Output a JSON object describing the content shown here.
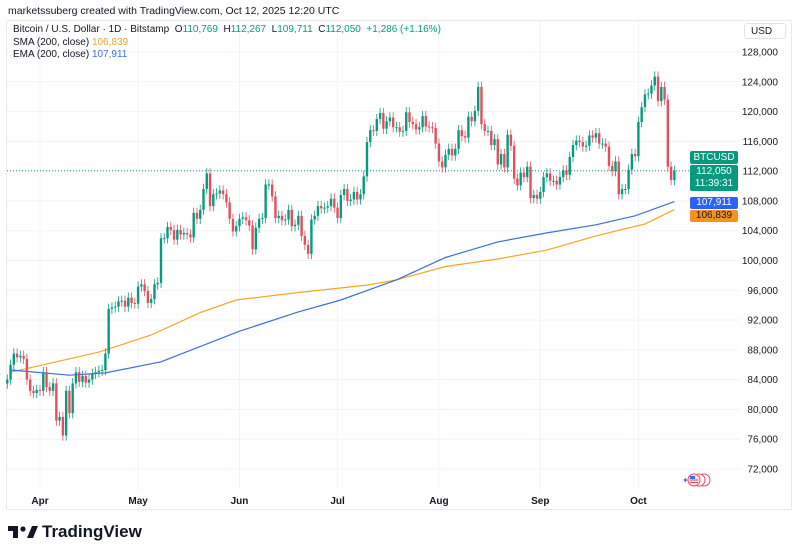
{
  "credit": "marketssuberg created with TradingView.com, Oct 12, 2025 12:20 UTC",
  "legend": {
    "symbol": "Bitcoin / U.S. Dollar · 1D · Bitstamp",
    "o_label": "O",
    "o": "110,769",
    "h_label": "H",
    "h": "112,267",
    "l_label": "L",
    "l": "109,711",
    "c_label": "C",
    "c": "112,050",
    "change": "+1,286 (+1.16%)",
    "sma_label": "SMA (200, close)",
    "sma_value": "106,839",
    "ema_label": "EMA (200, close)",
    "ema_value": "107,911"
  },
  "currency": "USD",
  "tags": {
    "symbol": "BTCUSD",
    "price": "112,050",
    "countdown": "11:39:31",
    "ema": "107,911",
    "sma": "106,839"
  },
  "brand": "TradingView",
  "colors": {
    "up": "#089981",
    "down": "#e0505e",
    "sma": "#f5a623",
    "ema": "#3d6fd8",
    "ema_tag": "#2962ff",
    "sma_tag": "#f7931a"
  },
  "chart_data": {
    "type": "candlestick",
    "symbol": "BTCUSD",
    "interval": "1D",
    "start_date": "2025-03-22",
    "units": "thousand USD",
    "close": [
      84,
      86,
      87.5,
      87,
      87.2,
      86.8,
      84,
      82.5,
      82.2,
      82.6,
      82.5,
      85,
      83,
      82.5,
      83.5,
      78.5,
      79,
      76.5,
      82.5,
      79.5,
      83.5,
      85,
      83.7,
      84.5,
      83.6,
      84,
      84.8,
      85,
      85.2,
      85.3,
      87.5,
      93.5,
      93.7,
      93.8,
      94.5,
      94.6,
      93.8,
      95,
      94.3,
      94.2,
      96.5,
      96.8,
      95.9,
      94.3,
      94.8,
      96.8,
      97,
      103,
      103,
      104.5,
      104.1,
      102.8,
      104.1,
      103.5,
      103.7,
      103.5,
      103.1,
      106.4,
      105.6,
      106.8,
      109.6,
      111.7,
      107.3,
      108.9,
      109,
      109.4,
      108.9,
      107.8,
      105.6,
      103.9,
      104.6,
      105.6,
      105.8,
      105.4,
      104.7,
      101.5,
      104.4,
      105.6,
      105.7,
      110.2,
      110.2,
      108.6,
      105.7,
      106,
      105.4,
      105.5,
      106.8,
      104.6,
      104.8,
      106,
      103.3,
      102.1,
      100.9,
      105.5,
      106,
      107.3,
      107,
      107.1,
      107.3,
      108.3,
      107.1,
      105.7,
      108.8,
      109.6,
      108,
      108.2,
      109.2,
      108.2,
      108.9,
      111.3,
      115.9,
      117.5,
      117.4,
      119,
      119.8,
      117.7,
      118.7,
      119.2,
      117.9,
      117.9,
      117.3,
      117.4,
      119.9,
      118.6,
      118.3,
      117.6,
      117.9,
      119.4,
      118,
      117.9,
      117.8,
      115.7,
      113.3,
      112.5,
      114.2,
      115,
      114.1,
      115,
      117.5,
      116.7,
      116.5,
      119.3,
      118.7,
      120.1,
      123.3,
      118.3,
      117.4,
      117.4,
      115.5,
      116.3,
      112.9,
      114.3,
      112.5,
      116.9,
      115.4,
      111,
      110.1,
      111.8,
      111.2,
      112.6,
      108.4,
      108.8,
      108.3,
      109.2,
      111.2,
      111.7,
      110.7,
      110.7,
      110.2,
      111.2,
      112.1,
      111.5,
      113.9,
      115.5,
      116.1,
      115.9,
      115.3,
      115.4,
      116.8,
      116.5,
      117.1,
      115.7,
      115.7,
      115.3,
      112.7,
      112,
      113.3,
      108.9,
      109.6,
      109.6,
      112.2,
      114.3,
      114,
      118.6,
      120.6,
      122.3,
      122.4,
      123.5,
      124.7,
      121.4,
      123.3,
      121.6,
      112.6,
      110.8,
      112.05
    ],
    "series": [
      {
        "name": "SMA (200, close)",
        "points": [
          [
            "2025-03-23",
            85.0
          ],
          [
            "2025-04-04",
            86.2
          ],
          [
            "2025-04-19",
            87.7
          ],
          [
            "2025-05-05",
            90.0
          ],
          [
            "2025-05-20",
            93.0
          ],
          [
            "2025-05-31",
            94.7
          ],
          [
            "2025-06-19",
            95.7
          ],
          [
            "2025-07-10",
            96.7
          ],
          [
            "2025-07-19",
            97.4
          ],
          [
            "2025-08-03",
            99.2
          ],
          [
            "2025-08-19",
            100.2
          ],
          [
            "2025-09-03",
            101.4
          ],
          [
            "2025-09-18",
            103.3
          ],
          [
            "2025-10-03",
            104.9
          ],
          [
            "2025-10-12",
            106.839
          ]
        ]
      },
      {
        "name": "EMA (200, close)",
        "points": [
          [
            "2025-03-23",
            85.3
          ],
          [
            "2025-04-10",
            84.6
          ],
          [
            "2025-04-21",
            84.9
          ],
          [
            "2025-05-08",
            86.4
          ],
          [
            "2025-06-01",
            90.5
          ],
          [
            "2025-06-19",
            93.1
          ],
          [
            "2025-07-02",
            94.7
          ],
          [
            "2025-07-19",
            97.4
          ],
          [
            "2025-08-03",
            100.4
          ],
          [
            "2025-08-19",
            102.5
          ],
          [
            "2025-09-03",
            103.7
          ],
          [
            "2025-09-18",
            104.8
          ],
          [
            "2025-09-30",
            106.0
          ],
          [
            "2025-10-12",
            107.911
          ]
        ]
      }
    ],
    "y_ticks": [
      "128,000",
      "124,000",
      "120,000",
      "116,000",
      "112,000",
      "108,000",
      "104,000",
      "100,000",
      "96,000",
      "92,000",
      "88,000",
      "84,000",
      "80,000",
      "76,000",
      "72,000"
    ],
    "x_ticks": [
      [
        "Apr",
        "2025-04-01"
      ],
      [
        "May",
        "2025-05-01"
      ],
      [
        "Jun",
        "2025-06-01"
      ],
      [
        "Jul",
        "2025-07-01"
      ],
      [
        "Aug",
        "2025-08-01"
      ],
      [
        "Sep",
        "2025-09-01"
      ],
      [
        "Oct",
        "2025-10-01"
      ]
    ],
    "ylim": [
      72000,
      128000
    ],
    "grid": true,
    "last_price_line": 112.05
  }
}
